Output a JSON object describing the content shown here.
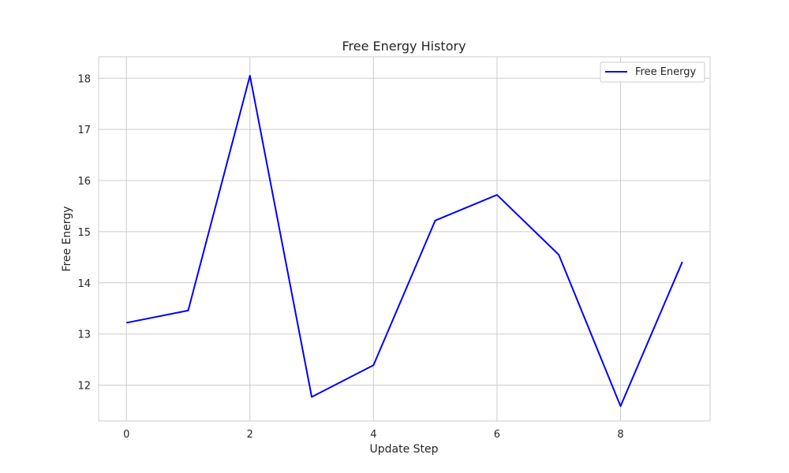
{
  "chart_data": {
    "type": "line",
    "title": "Free Energy History",
    "xlabel": "Update Step",
    "ylabel": "Free Energy",
    "xlim": [
      -0.45,
      9.45
    ],
    "ylim": [
      11.3,
      18.42
    ],
    "xticks": [
      0,
      2,
      4,
      6,
      8
    ],
    "yticks": [
      12,
      13,
      14,
      15,
      16,
      17,
      18
    ],
    "grid": true,
    "legend": "top-right",
    "series": [
      {
        "name": "Free Energy",
        "color": "#0000ff",
        "x": [
          0,
          1,
          2,
          3,
          4,
          5,
          6,
          7,
          8,
          9
        ],
        "y": [
          13.22,
          13.46,
          18.05,
          11.77,
          12.39,
          15.22,
          15.72,
          14.55,
          11.59,
          14.41
        ]
      }
    ]
  }
}
